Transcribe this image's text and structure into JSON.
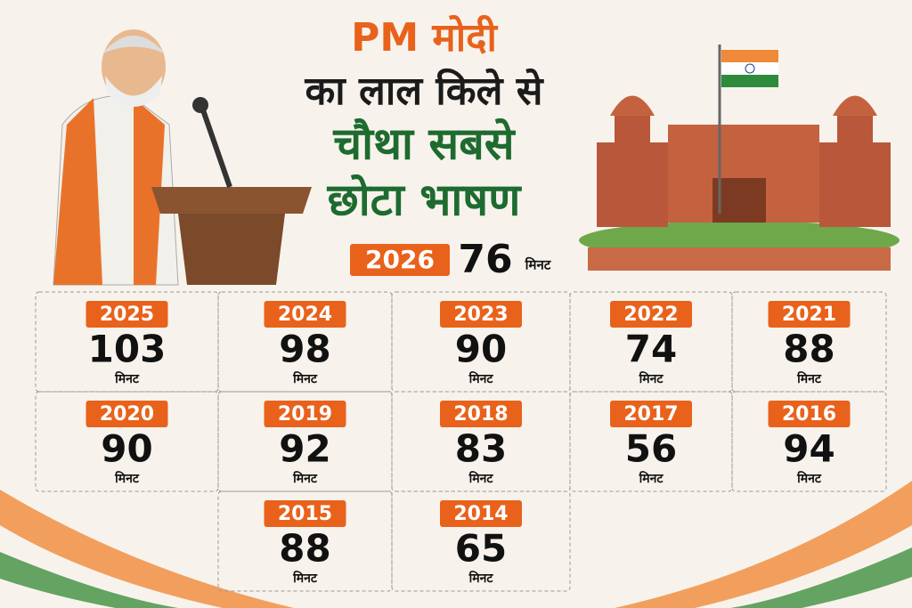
{
  "title": {
    "line1": "PM मोदी",
    "line2": "का लाल किले से",
    "line3": "चौथा सबसे",
    "line4": "छोटा भाषण"
  },
  "highlight": {
    "year": 2026,
    "minutes": 76,
    "unit": "मिनट"
  },
  "grid": [
    {
      "year": 2025,
      "minutes": 103,
      "unit": "मिनट"
    },
    {
      "year": 2024,
      "minutes": 98,
      "unit": "मिनट"
    },
    {
      "year": 2023,
      "minutes": 90,
      "unit": "मिनट"
    },
    {
      "year": 2022,
      "minutes": 74,
      "unit": "मिनट"
    },
    {
      "year": 2021,
      "minutes": 88,
      "unit": "मिनट"
    },
    {
      "year": 2020,
      "minutes": 90,
      "unit": "मिनट"
    },
    {
      "year": 2019,
      "minutes": 92,
      "unit": "मिनट"
    },
    {
      "year": 2018,
      "minutes": 83,
      "unit": "मिनट"
    },
    {
      "year": 2017,
      "minutes": 56,
      "unit": "मिनट"
    },
    {
      "year": 2016,
      "minutes": 94,
      "unit": "मिनट"
    },
    {
      "year": 2015,
      "minutes": 88,
      "unit": "मिनट"
    },
    {
      "year": 2014,
      "minutes": 65,
      "unit": "मिनट"
    }
  ]
}
